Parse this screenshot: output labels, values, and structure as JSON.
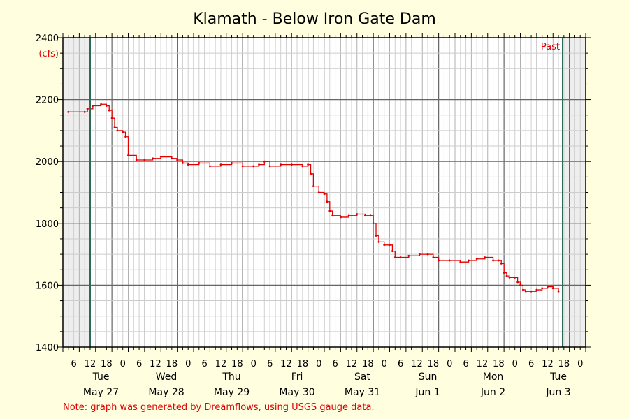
{
  "chart_data": {
    "type": "line",
    "title": "Klamath - Below Iron Gate Dam",
    "ylabel": "(cfs)",
    "ylim": [
      1400,
      2400
    ],
    "yticks": [
      "2400",
      "2200",
      "2000",
      "1800",
      "1600",
      "1400"
    ],
    "hour_labels": [
      "6",
      "12",
      "18",
      "0"
    ],
    "days": [
      {
        "name": "Tue",
        "date": "May 27"
      },
      {
        "name": "Wed",
        "date": "May 28"
      },
      {
        "name": "Thu",
        "date": "May 29"
      },
      {
        "name": "Fri",
        "date": "May 30"
      },
      {
        "name": "Sat",
        "date": "May 31"
      },
      {
        "name": "Sun",
        "date": "Jun 1"
      },
      {
        "name": "Mon",
        "date": "Jun 2"
      },
      {
        "name": "Tue",
        "date": "Jun 3"
      }
    ],
    "past_label": "Past",
    "grid": true,
    "series": [
      {
        "color": "#e00000",
        "points": [
          [
            2,
            2160
          ],
          [
            8,
            2160
          ],
          [
            9,
            2170
          ],
          [
            11,
            2180
          ],
          [
            14,
            2185
          ],
          [
            16,
            2180
          ],
          [
            17,
            2165
          ],
          [
            18,
            2140
          ],
          [
            19,
            2110
          ],
          [
            20,
            2100
          ],
          [
            22,
            2095
          ],
          [
            23,
            2080
          ],
          [
            24,
            2020
          ],
          [
            27,
            2005
          ],
          [
            30,
            2005
          ],
          [
            33,
            2010
          ],
          [
            36,
            2015
          ],
          [
            40,
            2010
          ],
          [
            42,
            2005
          ],
          [
            44,
            1995
          ],
          [
            46,
            1990
          ],
          [
            50,
            1995
          ],
          [
            54,
            1985
          ],
          [
            58,
            1990
          ],
          [
            62,
            1995
          ],
          [
            66,
            1985
          ],
          [
            70,
            1985
          ],
          [
            72,
            1990
          ],
          [
            74,
            2000
          ],
          [
            76,
            1985
          ],
          [
            80,
            1990
          ],
          [
            84,
            1990
          ],
          [
            88,
            1985
          ],
          [
            90,
            1990
          ],
          [
            91,
            1960
          ],
          [
            92,
            1920
          ],
          [
            94,
            1900
          ],
          [
            96,
            1895
          ],
          [
            97,
            1870
          ],
          [
            98,
            1840
          ],
          [
            99,
            1825
          ],
          [
            102,
            1820
          ],
          [
            105,
            1825
          ],
          [
            108,
            1830
          ],
          [
            111,
            1825
          ],
          [
            113,
            1825
          ],
          [
            114,
            1800
          ],
          [
            115,
            1760
          ],
          [
            116,
            1740
          ],
          [
            118,
            1730
          ],
          [
            120,
            1730
          ],
          [
            121,
            1710
          ],
          [
            122,
            1690
          ],
          [
            124,
            1690
          ],
          [
            127,
            1695
          ],
          [
            131,
            1700
          ],
          [
            134,
            1700
          ],
          [
            136,
            1690
          ],
          [
            138,
            1680
          ],
          [
            142,
            1680
          ],
          [
            146,
            1675
          ],
          [
            149,
            1680
          ],
          [
            152,
            1685
          ],
          [
            155,
            1690
          ],
          [
            158,
            1680
          ],
          [
            160,
            1680
          ],
          [
            161,
            1670
          ],
          [
            162,
            1640
          ],
          [
            163,
            1630
          ],
          [
            164,
            1625
          ],
          [
            166,
            1625
          ],
          [
            167,
            1610
          ],
          [
            168,
            1600
          ],
          [
            169,
            1585
          ],
          [
            170,
            1580
          ],
          [
            172,
            1580
          ],
          [
            174,
            1585
          ],
          [
            176,
            1590
          ],
          [
            178,
            1595
          ],
          [
            180,
            1590
          ],
          [
            182,
            1580
          ]
        ]
      }
    ]
  },
  "footnote": "Note: graph was generated by Dreamflows, using USGS gauge data."
}
